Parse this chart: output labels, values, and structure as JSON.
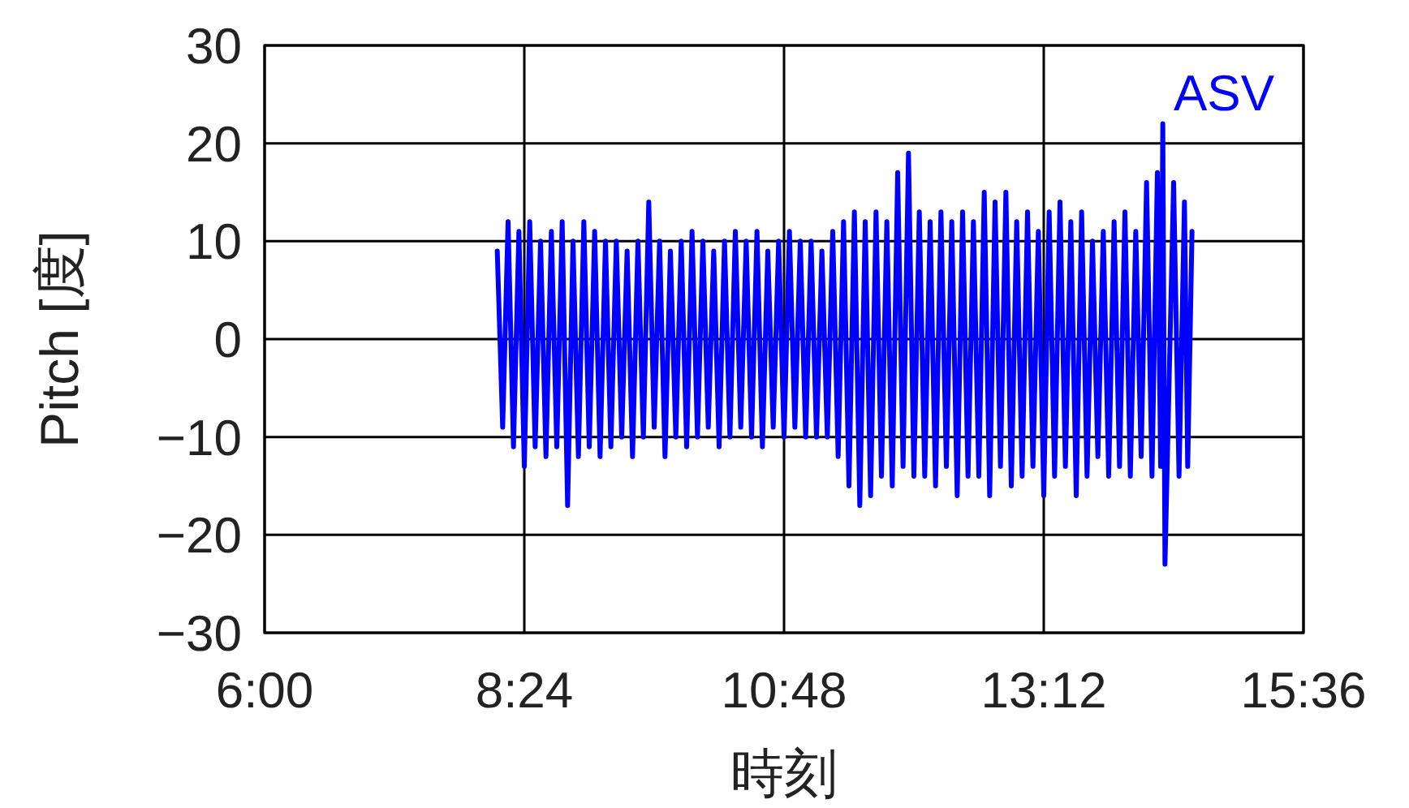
{
  "chart_data": {
    "type": "line",
    "xlabel": "時刻",
    "ylabel": "Pitch [度]",
    "xlim": [
      6,
      15.6
    ],
    "ylim": [
      -30,
      30
    ],
    "xticks": [
      {
        "value": 6,
        "label": "6:00"
      },
      {
        "value": 8.4,
        "label": "8:24"
      },
      {
        "value": 10.8,
        "label": "10:48"
      },
      {
        "value": 13.2,
        "label": "13:12"
      },
      {
        "value": 15.6,
        "label": "15:36"
      }
    ],
    "yticks": [
      -30,
      -20,
      -10,
      0,
      10,
      20,
      30
    ],
    "grid": true,
    "series": [
      {
        "name": "ASV",
        "color": "#0000ff",
        "x": [
          8.15,
          8.2,
          8.25,
          8.3,
          8.35,
          8.4,
          8.45,
          8.5,
          8.55,
          8.6,
          8.65,
          8.7,
          8.75,
          8.8,
          8.85,
          8.9,
          8.95,
          9.0,
          9.05,
          9.1,
          9.15,
          9.2,
          9.25,
          9.3,
          9.35,
          9.4,
          9.45,
          9.5,
          9.55,
          9.6,
          9.65,
          9.7,
          9.75,
          9.8,
          9.85,
          9.9,
          9.95,
          10.0,
          10.05,
          10.1,
          10.15,
          10.2,
          10.25,
          10.3,
          10.35,
          10.4,
          10.45,
          10.5,
          10.55,
          10.6,
          10.65,
          10.7,
          10.75,
          10.8,
          10.85,
          10.9,
          10.95,
          11.0,
          11.05,
          11.1,
          11.15,
          11.2,
          11.25,
          11.3,
          11.35,
          11.4,
          11.45,
          11.5,
          11.55,
          11.6,
          11.65,
          11.7,
          11.75,
          11.8,
          11.85,
          11.9,
          11.95,
          12.0,
          12.05,
          12.1,
          12.15,
          12.2,
          12.25,
          12.3,
          12.35,
          12.4,
          12.45,
          12.5,
          12.55,
          12.6,
          12.65,
          12.7,
          12.75,
          12.8,
          12.85,
          12.9,
          12.95,
          13.0,
          13.05,
          13.1,
          13.15,
          13.2,
          13.25,
          13.3,
          13.35,
          13.4,
          13.45,
          13.5,
          13.55,
          13.6,
          13.65,
          13.7,
          13.75,
          13.8,
          13.85,
          13.9,
          13.95,
          14.0,
          14.05,
          14.1,
          14.15,
          14.2,
          14.25,
          14.28,
          14.3,
          14.32,
          14.4,
          14.45,
          14.5,
          14.53,
          14.57
        ],
        "values": [
          9,
          -9,
          12,
          -11,
          11,
          -13,
          12,
          -11,
          10,
          -12,
          11,
          -11,
          12,
          -17,
          10,
          -12,
          12,
          -11,
          11,
          -12,
          10,
          -11,
          10,
          -10,
          9,
          -12,
          10,
          -10,
          14,
          -9,
          10,
          -12,
          9,
          -10,
          10,
          -11,
          11,
          -10,
          10,
          -9,
          9,
          -11,
          10,
          -10,
          11,
          -9,
          10,
          -10,
          11,
          -11,
          9,
          -9,
          10,
          -10,
          11,
          -9,
          10,
          -10,
          10,
          -10,
          9,
          -10,
          11,
          -12,
          12,
          -15,
          13,
          -17,
          12,
          -16,
          13,
          -14,
          12,
          -15,
          17,
          -13,
          19,
          -14,
          13,
          -14,
          12,
          -15,
          13,
          -13,
          12,
          -16,
          13,
          -14,
          12,
          -14,
          15,
          -16,
          14,
          -13,
          15,
          -15,
          12,
          -14,
          13,
          -13,
          11,
          -16,
          13,
          -14,
          14,
          -13,
          12,
          -16,
          13,
          -14,
          10,
          -12,
          11,
          -14,
          12,
          -13,
          13,
          -14,
          11,
          -12,
          16,
          -14,
          17,
          -13,
          22,
          -23,
          16,
          -14,
          14,
          -13,
          11
        ]
      }
    ]
  }
}
